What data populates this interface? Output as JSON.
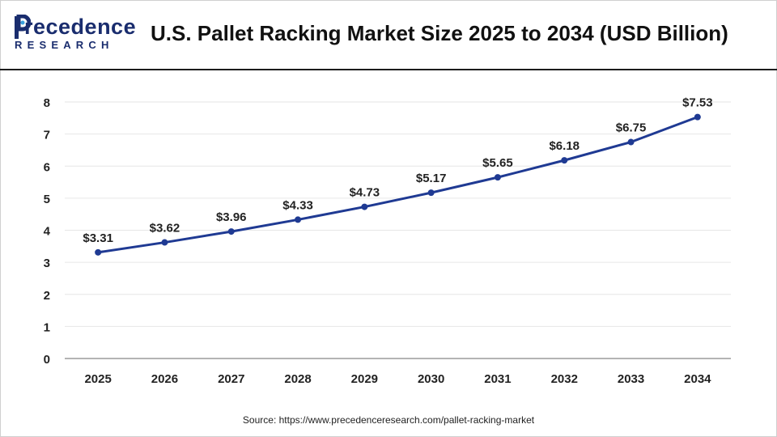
{
  "logo": {
    "main": "recedence",
    "sub": "RESEARCH",
    "initial": "P"
  },
  "title": "U.S. Pallet Racking Market Size 2025 to 2034 (USD Billion)",
  "source": "Source: https://www.precedenceresearch.com/pallet-racking-market",
  "colors": {
    "line": "#1f3a93",
    "grid": "#e6e6e6",
    "axis": "#888888",
    "brand": "#1a2d6e"
  },
  "chart_data": {
    "type": "line",
    "title": "U.S. Pallet Racking Market Size 2025 to 2034 (USD Billion)",
    "categories": [
      "2025",
      "2026",
      "2027",
      "2028",
      "2029",
      "2030",
      "2031",
      "2032",
      "2033",
      "2034"
    ],
    "values": [
      3.31,
      3.62,
      3.96,
      4.33,
      4.73,
      5.17,
      5.65,
      6.18,
      6.75,
      7.53
    ],
    "data_labels": [
      "$3.31",
      "$3.62",
      "$3.96",
      "$4.33",
      "$4.73",
      "$5.17",
      "$5.65",
      "$6.18",
      "$6.75",
      "$7.53"
    ],
    "yticks": [
      "0",
      "1",
      "2",
      "3",
      "4",
      "5",
      "6",
      "7",
      "8"
    ],
    "ylim": [
      0,
      8
    ],
    "grid": true,
    "legend": "none"
  }
}
